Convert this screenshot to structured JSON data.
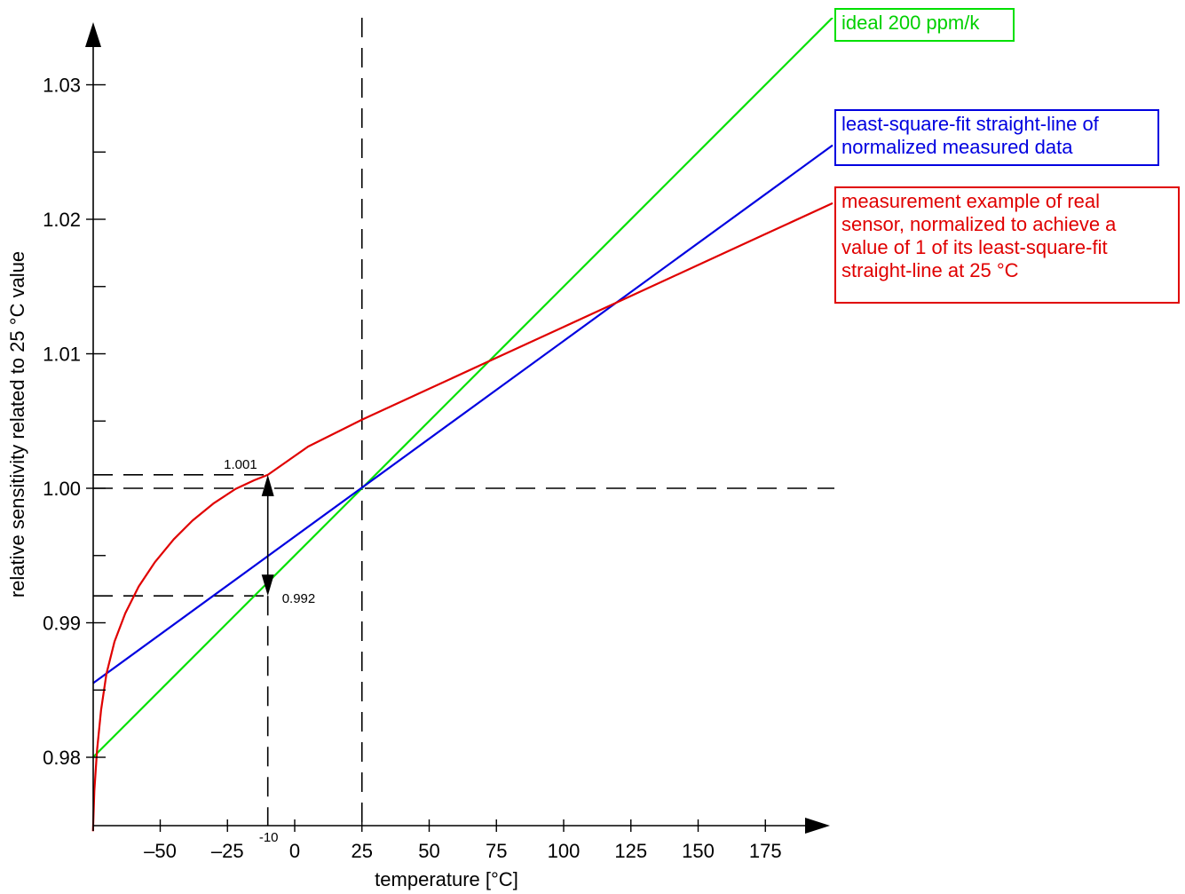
{
  "chart_data": {
    "type": "line",
    "xlabel": "temperature [°C]",
    "ylabel": "relative sensitivity related to 25 °C value",
    "x_ticks": [
      -50,
      -25,
      0,
      25,
      50,
      75,
      100,
      125,
      150,
      175
    ],
    "x_tick_labels": [
      "–50",
      "–25",
      "0",
      "25",
      "50",
      "75",
      "100",
      "125",
      "150",
      "175"
    ],
    "x_extra_tick": {
      "value": -10,
      "label": "-10"
    },
    "y_ticks": [
      0.98,
      0.99,
      1.0,
      1.01,
      1.02,
      1.03
    ],
    "y_tick_labels": [
      "0.98",
      "0.99",
      "1.00",
      "1.01",
      "1.02",
      "1.03"
    ],
    "xlim": [
      -75,
      200
    ],
    "ylim": [
      0.9745,
      1.034
    ],
    "grid": false,
    "series": [
      {
        "name": "ideal 200 ppm/k",
        "color": "#00e000",
        "x": [
          -75,
          200
        ],
        "y": [
          0.98,
          1.035
        ]
      },
      {
        "name": "least-square-fit straight-line of\nnormalized measured data",
        "color": "#0000e0",
        "x": [
          -75,
          200
        ],
        "y": [
          0.9855,
          1.0255
        ]
      },
      {
        "name": "measurement example of real\nsensor, normalized to achieve a\nvalue of 1 of its least-square-fit\nstraight-line at 25 °C",
        "color": "#e00000",
        "x": [
          -75,
          -74.5,
          -73.5,
          -72,
          -70,
          -67,
          -63,
          -58,
          -52,
          -45,
          -38,
          -30,
          -22,
          -15,
          -10,
          -5,
          0,
          5,
          15,
          25,
          50,
          75,
          100,
          125,
          150,
          175,
          200
        ],
        "y": [
          0.9745,
          0.9775,
          0.9805,
          0.9835,
          0.9862,
          0.9886,
          0.9907,
          0.9927,
          0.9945,
          0.9962,
          0.9976,
          0.9989,
          0.99995,
          1.0006,
          1.001,
          1.0017,
          1.0024,
          1.0031,
          1.0041,
          1.0051,
          1.0074,
          1.0097,
          1.012,
          1.0143,
          1.0166,
          1.0189,
          1.0212
        ]
      }
    ],
    "annotations": [
      {
        "label": "1.001",
        "x": -10,
        "y": 1.001
      },
      {
        "label": "0.992",
        "x": -10,
        "y": 0.992
      }
    ],
    "reference_lines": {
      "vertical": [
        -10,
        25
      ],
      "horizontal": [
        1.001,
        1.0,
        0.992
      ]
    }
  }
}
